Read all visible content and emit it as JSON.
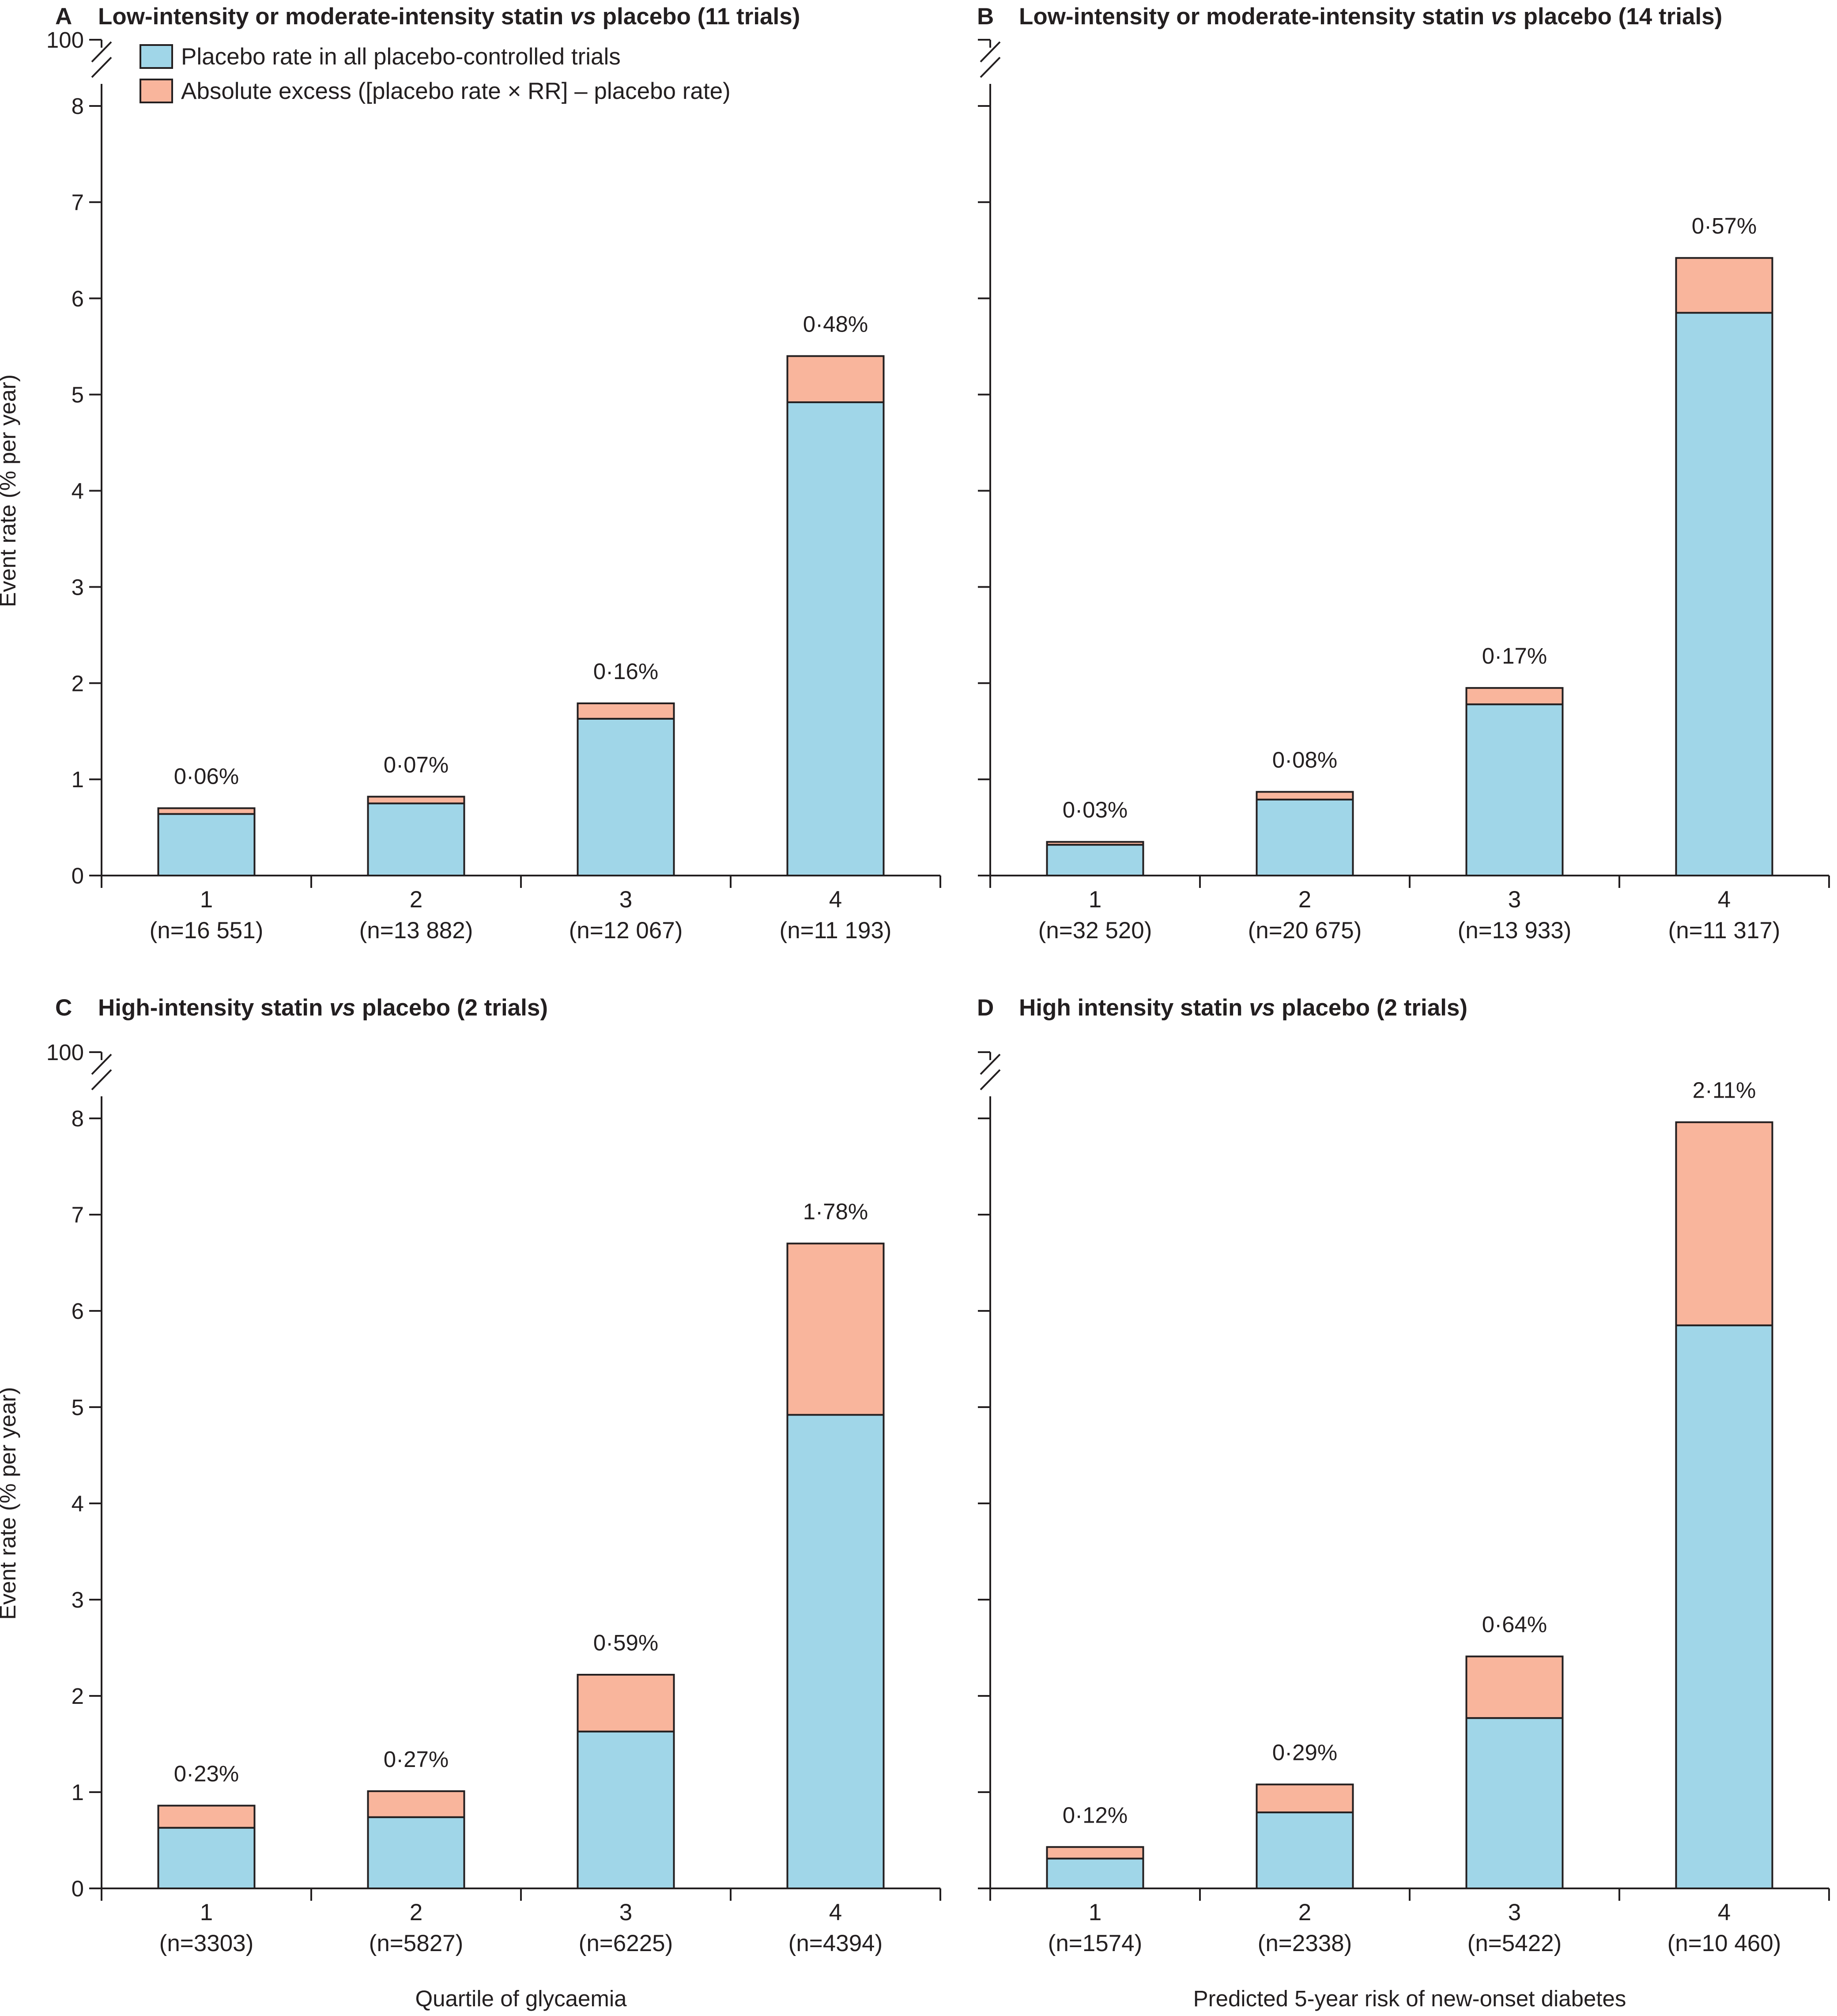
{
  "colors": {
    "placebo": "#a0d6e8",
    "excess": "#f9b59c",
    "ink": "#231f20"
  },
  "legend": {
    "items": [
      {
        "label": "Placebo rate in all placebo-controlled trials",
        "color": "#a0d6e8"
      },
      {
        "label": "Absolute excess ([placebo rate × RR] – placebo rate)",
        "color": "#f9b59c"
      }
    ]
  },
  "chart_data": [
    {
      "type": "bar",
      "stacked": true,
      "panel": "A",
      "title": "Low-intensity or moderate-intensity statin vs placebo (11 trials)",
      "title_prefix": "Low-intensity or moderate-intensity statin",
      "title_vs": "vs",
      "title_suffix": "placebo (11 trials)",
      "categories": [
        "1",
        "2",
        "3",
        "4"
      ],
      "category_n": [
        "(n=16 551)",
        "(n=13 882)",
        "(n=12 067)",
        "(n=11 193)"
      ],
      "series": [
        {
          "name": "Placebo rate in all placebo-controlled trials",
          "values": [
            0.64,
            0.75,
            1.63,
            4.92
          ]
        },
        {
          "name": "Absolute excess ([placebo rate × RR] – placebo rate)",
          "values": [
            0.06,
            0.07,
            0.16,
            0.48
          ]
        }
      ],
      "data_labels": [
        "0·06%",
        "0·07%",
        "0·16%",
        "0·48%"
      ],
      "ylabel": "Event rate (% per year)",
      "xlabel": "",
      "ylim": [
        0,
        8
      ],
      "yticks": [
        "0",
        "1",
        "2",
        "3",
        "4",
        "5",
        "6",
        "7",
        "8"
      ],
      "axis_break_label": "100",
      "show_ytick_labels": true
    },
    {
      "type": "bar",
      "stacked": true,
      "panel": "B",
      "title": "Low-intensity or moderate-intensity statin vs placebo (14 trials)",
      "title_prefix": "Low-intensity or moderate-intensity statin",
      "title_vs": "vs",
      "title_suffix": "placebo (14 trials)",
      "categories": [
        "1",
        "2",
        "3",
        "4"
      ],
      "category_n": [
        "(n=32 520)",
        "(n=20 675)",
        "(n=13 933)",
        "(n=11 317)"
      ],
      "series": [
        {
          "name": "Placebo rate in all placebo-controlled trials",
          "values": [
            0.32,
            0.79,
            1.78,
            5.85
          ]
        },
        {
          "name": "Absolute excess ([placebo rate × RR] – placebo rate)",
          "values": [
            0.03,
            0.08,
            0.17,
            0.57
          ]
        }
      ],
      "data_labels": [
        "0·03%",
        "0·08%",
        "0·17%",
        "0·57%"
      ],
      "ylabel": "",
      "xlabel": "",
      "ylim": [
        0,
        8
      ],
      "yticks": [],
      "axis_break_label": "",
      "show_ytick_labels": false
    },
    {
      "type": "bar",
      "stacked": true,
      "panel": "C",
      "title": "High-intensity statin vs placebo (2 trials)",
      "title_prefix": "High-intensity statin",
      "title_vs": "vs",
      "title_suffix": "placebo (2 trials)",
      "categories": [
        "1",
        "2",
        "3",
        "4"
      ],
      "category_n": [
        "(n=3303)",
        "(n=5827)",
        "(n=6225)",
        "(n=4394)"
      ],
      "series": [
        {
          "name": "Placebo rate in all placebo-controlled trials",
          "values": [
            0.63,
            0.74,
            1.63,
            4.92
          ]
        },
        {
          "name": "Absolute excess ([placebo rate × RR] – placebo rate)",
          "values": [
            0.23,
            0.27,
            0.59,
            1.78
          ]
        }
      ],
      "data_labels": [
        "0·23%",
        "0·27%",
        "0·59%",
        "1·78%"
      ],
      "ylabel": "Event rate (% per year)",
      "xlabel": "Quartile of glycaemia",
      "ylim": [
        0,
        8
      ],
      "yticks": [
        "0",
        "1",
        "2",
        "3",
        "4",
        "5",
        "6",
        "7",
        "8"
      ],
      "axis_break_label": "100",
      "show_ytick_labels": true
    },
    {
      "type": "bar",
      "stacked": true,
      "panel": "D",
      "title": "High intensity statin vs placebo (2 trials)",
      "title_prefix": "High intensity statin",
      "title_vs": "vs",
      "title_suffix": "placebo (2 trials)",
      "categories": [
        "1",
        "2",
        "3",
        "4"
      ],
      "category_n": [
        "(n=1574)",
        "(n=2338)",
        "(n=5422)",
        "(n=10 460)"
      ],
      "series": [
        {
          "name": "Placebo rate in all placebo-controlled trials",
          "values": [
            0.31,
            0.79,
            1.77,
            5.85
          ]
        },
        {
          "name": "Absolute excess ([placebo rate × RR] – placebo rate)",
          "values": [
            0.12,
            0.29,
            0.64,
            2.11
          ]
        }
      ],
      "data_labels": [
        "0·12%",
        "0·29%",
        "0·64%",
        "2·11%"
      ],
      "ylabel": "",
      "xlabel": "Predicted 5-year risk of new-onset diabetes",
      "ylim": [
        0,
        8
      ],
      "yticks": [],
      "axis_break_label": "",
      "show_ytick_labels": false
    }
  ]
}
